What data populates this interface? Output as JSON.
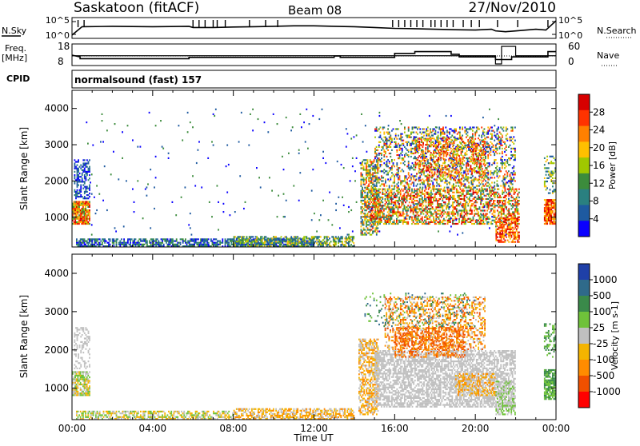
{
  "header": {
    "station": "Saskatoon (fitACF)",
    "beam": "Beam 08",
    "date": "27/Nov/2010"
  },
  "strip_labels": {
    "nsky": "N.Sky",
    "nsearch": "N.Search",
    "freq_line1": "Freq.",
    "freq_line2": "[MHz]",
    "nave": "Nave",
    "cpid": "CPID",
    "cpid_value": "normalsound (fast) 157"
  },
  "chart_data": [
    {
      "type": "line",
      "name": "noise",
      "left_ticks": [
        "10^5",
        "10^0"
      ],
      "right_ticks": [
        "10^5",
        "10^0"
      ],
      "x_hours": [
        0,
        0.5,
        2,
        4,
        5.8,
        6,
        7,
        8,
        9,
        10,
        11,
        12,
        13,
        14,
        15,
        16,
        17,
        18,
        19,
        20,
        20.8,
        21,
        21.5,
        22,
        23,
        23.5,
        24
      ],
      "nsky": [
        0.1,
        0.6,
        0.62,
        0.6,
        0.62,
        0.55,
        0.55,
        0.58,
        0.6,
        0.62,
        0.65,
        0.65,
        0.62,
        0.6,
        0.55,
        0.5,
        0.48,
        0.45,
        0.42,
        0.4,
        0.45,
        0.35,
        0.3,
        0.35,
        0.45,
        0.4,
        0.95
      ],
      "spikes_hours": [
        0.3,
        0.6,
        6.0,
        6.3,
        6.6,
        7.0,
        7.2,
        7.6,
        8.8,
        9.6,
        10.2,
        15.9,
        16.2,
        16.5,
        16.8,
        17.1,
        17.4,
        17.8,
        18.0,
        18.3,
        18.6,
        18.9,
        19.4,
        19.8,
        20.2,
        21.1,
        22.1,
        23.6
      ]
    },
    {
      "type": "line",
      "name": "freq_nave",
      "left_ticks": [
        "18",
        "8"
      ],
      "right_ticks": [
        "60",
        "0"
      ],
      "freq_x_hours": [
        0,
        0.4,
        0.4,
        5.8,
        5.8,
        13.0,
        13.0,
        13.3,
        13.3,
        16.0,
        16.0,
        17.0,
        17.0,
        18.8,
        18.8,
        19.2,
        19.2,
        21.0,
        21.0,
        21.8,
        21.8,
        23.6,
        23.6,
        24
      ],
      "freq_mhz": [
        13,
        12,
        11,
        11,
        11.7,
        11.7,
        12.5,
        12.5,
        11.7,
        11.7,
        14,
        14,
        15,
        15,
        13.5,
        13.5,
        12,
        12,
        10.5,
        10.5,
        12,
        12,
        15,
        15
      ],
      "nave_x_hours": [
        0,
        21.0,
        21.0,
        21.3,
        21.3,
        22.0,
        22.0,
        24
      ],
      "nave": [
        28,
        28,
        0,
        0,
        60,
        60,
        28,
        28
      ]
    },
    {
      "type": "heatmap",
      "name": "power",
      "xlabel": "",
      "ylabel": "Slant Range [km]",
      "x_ticks": [
        "00:00",
        "04:00",
        "08:00",
        "12:00",
        "16:00",
        "20:00",
        "00:00"
      ],
      "y_ticks": [
        1000,
        2000,
        3000,
        4000
      ],
      "xlim_hours": [
        0,
        24
      ],
      "ylim_km": [
        180,
        4500
      ],
      "colorbar_label": "Power [dB]",
      "colorbar_ticks": [
        "28",
        "24",
        "20",
        "16",
        "12",
        "8",
        "4"
      ],
      "colorbar_colors": [
        "#d70000",
        "#ff3300",
        "#ff8000",
        "#ffc000",
        "#a0c800",
        "#3c8c3c",
        "#2a8080",
        "#1e5aa0",
        "#0a00ff"
      ]
    },
    {
      "type": "heatmap",
      "name": "velocity",
      "xlabel": "Time UT",
      "ylabel": "Slant Range [km]",
      "x_ticks": [
        "00:00",
        "04:00",
        "08:00",
        "12:00",
        "16:00",
        "20:00",
        "00:00"
      ],
      "y_ticks": [
        1000,
        2000,
        3000,
        4000
      ],
      "xlim_hours": [
        0,
        24
      ],
      "ylim_km": [
        180,
        4500
      ],
      "colorbar_label": "Velocity [m s-1]",
      "colorbar_ticks": [
        "1000",
        "500",
        "100",
        "25",
        "-25",
        "-100",
        "-500",
        "-1000"
      ],
      "colorbar_colors": [
        "#1f40a8",
        "#2f6a8a",
        "#3a8a4a",
        "#6fc23a",
        "#c0c0c0",
        "#f4b400",
        "#ff8c00",
        "#f05000",
        "#ff0000"
      ]
    }
  ],
  "regions": {
    "power": [
      {
        "t0": 0.0,
        "t1": 0.9,
        "r0": 800,
        "r1": 1450,
        "c": [
          0,
          1,
          2,
          3,
          4,
          5
        ],
        "d": 0.9
      },
      {
        "t0": 0.1,
        "t1": 0.9,
        "r0": 1500,
        "r1": 2600,
        "c": [
          6,
          7,
          8
        ],
        "d": 0.45
      },
      {
        "t0": 0.2,
        "t1": 12.0,
        "r0": 180,
        "r1": 420,
        "c": [
          5,
          6,
          7,
          8
        ],
        "d": 0.7
      },
      {
        "t0": 8.0,
        "t1": 14.0,
        "r0": 180,
        "r1": 480,
        "c": [
          3,
          4,
          5,
          6,
          7
        ],
        "d": 0.6
      },
      {
        "t0": 14.3,
        "t1": 15.2,
        "r0": 500,
        "r1": 2600,
        "c": [
          1,
          2,
          3,
          4,
          5,
          6,
          7
        ],
        "d": 0.6
      },
      {
        "t0": 14.8,
        "t1": 22.2,
        "r0": 800,
        "r1": 1800,
        "c": [
          0,
          1,
          2,
          3,
          4,
          5,
          6
        ],
        "d": 0.55
      },
      {
        "t0": 15.0,
        "t1": 22.0,
        "r0": 1800,
        "r1": 3500,
        "c": [
          1,
          2,
          3,
          4,
          5,
          6,
          7,
          8
        ],
        "d": 0.35
      },
      {
        "t0": 17.0,
        "t1": 20.5,
        "r0": 2000,
        "r1": 3200,
        "c": [
          0,
          1,
          2,
          3,
          4
        ],
        "d": 0.3
      },
      {
        "t0": 21.0,
        "t1": 22.2,
        "r0": 300,
        "r1": 1000,
        "c": [
          0,
          1,
          2,
          3
        ],
        "d": 0.6
      },
      {
        "t0": 23.4,
        "t1": 24.0,
        "r0": 800,
        "r1": 1500,
        "c": [
          0,
          1,
          2,
          3
        ],
        "d": 0.85
      },
      {
        "t0": 23.4,
        "t1": 24.0,
        "r0": 1600,
        "r1": 2700,
        "c": [
          3,
          4,
          6,
          7
        ],
        "d": 0.3
      },
      {
        "t0": 0.5,
        "t1": 22.0,
        "r0": 500,
        "r1": 4000,
        "c": [
          7,
          8,
          5
        ],
        "d": 0.01
      }
    ],
    "velocity": [
      {
        "t0": 0.0,
        "t1": 0.9,
        "r0": 800,
        "r1": 1450,
        "c": [
          3,
          4,
          5
        ],
        "d": 0.8
      },
      {
        "t0": 0.1,
        "t1": 0.9,
        "r0": 1500,
        "r1": 2600,
        "c": [
          4
        ],
        "d": 0.35
      },
      {
        "t0": 0.2,
        "t1": 8.0,
        "r0": 180,
        "r1": 420,
        "c": [
          3,
          4,
          5
        ],
        "d": 0.6
      },
      {
        "t0": 8.0,
        "t1": 14.0,
        "r0": 180,
        "r1": 480,
        "c": [
          5,
          6,
          4
        ],
        "d": 0.6
      },
      {
        "t0": 14.2,
        "t1": 15.2,
        "r0": 300,
        "r1": 2300,
        "c": [
          4,
          5,
          6
        ],
        "d": 0.6
      },
      {
        "t0": 15.0,
        "t1": 22.0,
        "r0": 500,
        "r1": 2000,
        "c": [
          4
        ],
        "d": 0.65
      },
      {
        "t0": 15.5,
        "t1": 20.5,
        "r0": 2000,
        "r1": 3400,
        "c": [
          6,
          7,
          5,
          4
        ],
        "d": 0.4
      },
      {
        "t0": 16.0,
        "t1": 19.5,
        "r0": 1800,
        "r1": 2600,
        "c": [
          6,
          7
        ],
        "d": 0.4
      },
      {
        "t0": 19.0,
        "t1": 21.0,
        "r0": 800,
        "r1": 1400,
        "c": [
          6,
          5
        ],
        "d": 0.4
      },
      {
        "t0": 21.0,
        "t1": 22.0,
        "r0": 300,
        "r1": 1200,
        "c": [
          3,
          4
        ],
        "d": 0.5
      },
      {
        "t0": 23.4,
        "t1": 24.0,
        "r0": 700,
        "r1": 1500,
        "c": [
          3,
          2
        ],
        "d": 0.8
      },
      {
        "t0": 23.4,
        "t1": 24.0,
        "r0": 1800,
        "r1": 2700,
        "c": [
          3,
          2
        ],
        "d": 0.3
      },
      {
        "t0": 14.5,
        "t1": 20.0,
        "r0": 2600,
        "r1": 3500,
        "c": [
          2,
          1,
          3
        ],
        "d": 0.1
      }
    ]
  }
}
